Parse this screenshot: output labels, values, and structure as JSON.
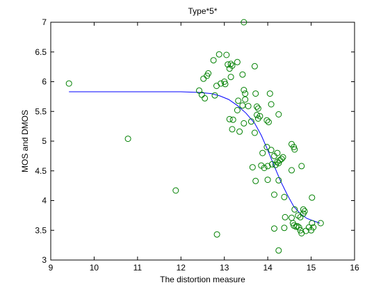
{
  "chart_data": {
    "type": "scatter",
    "title": "Type*5*",
    "xlabel": "The distortion measure",
    "ylabel": "MOS and DMOS",
    "xlim": [
      9,
      16
    ],
    "ylim": [
      3,
      7
    ],
    "xticks": [
      "9",
      "10",
      "11",
      "12",
      "13",
      "14",
      "15",
      "16"
    ],
    "yticks": [
      "3",
      "3.5",
      "4",
      "4.5",
      "5",
      "5.5",
      "6",
      "6.5",
      "7"
    ],
    "grid": false,
    "legend": "none",
    "series": [
      {
        "kind": "scatter",
        "marker": "open-circle",
        "color": "#008000",
        "points": [
          [
            9.42,
            5.97
          ],
          [
            10.78,
            5.04
          ],
          [
            11.88,
            4.17
          ],
          [
            12.83,
            3.43
          ],
          [
            12.42,
            5.85
          ],
          [
            12.48,
            5.78
          ],
          [
            12.55,
            5.72
          ],
          [
            12.52,
            6.05
          ],
          [
            12.6,
            6.1
          ],
          [
            12.63,
            6.14
          ],
          [
            12.75,
            6.36
          ],
          [
            12.88,
            6.46
          ],
          [
            12.78,
            5.77
          ],
          [
            12.82,
            5.93
          ],
          [
            12.92,
            5.97
          ],
          [
            13.0,
            6.0
          ],
          [
            13.02,
            5.96
          ],
          [
            13.05,
            6.45
          ],
          [
            13.08,
            6.29
          ],
          [
            13.12,
            6.22
          ],
          [
            13.15,
            6.3
          ],
          [
            13.18,
            6.27
          ],
          [
            13.15,
            6.08
          ],
          [
            13.3,
            6.33
          ],
          [
            13.42,
            6.12
          ],
          [
            13.45,
            7.0
          ],
          [
            13.45,
            5.86
          ],
          [
            13.48,
            5.8
          ],
          [
            13.48,
            5.7
          ],
          [
            13.32,
            5.68
          ],
          [
            13.12,
            5.37
          ],
          [
            13.2,
            5.36
          ],
          [
            13.3,
            5.52
          ],
          [
            13.18,
            5.2
          ],
          [
            13.35,
            5.16
          ],
          [
            13.42,
            5.6
          ],
          [
            13.45,
            5.3
          ],
          [
            13.55,
            5.59
          ],
          [
            13.62,
            5.33
          ],
          [
            13.7,
            6.26
          ],
          [
            13.72,
            5.8
          ],
          [
            13.75,
            5.58
          ],
          [
            13.78,
            5.55
          ],
          [
            13.82,
            5.42
          ],
          [
            13.78,
            5.38
          ],
          [
            13.75,
            5.44
          ],
          [
            13.7,
            5.14
          ],
          [
            13.98,
            5.35
          ],
          [
            14.02,
            5.32
          ],
          [
            14.05,
            5.8
          ],
          [
            14.08,
            5.62
          ],
          [
            14.25,
            5.45
          ],
          [
            13.88,
            4.8
          ],
          [
            13.98,
            4.9
          ],
          [
            14.08,
            4.85
          ],
          [
            14.15,
            4.75
          ],
          [
            14.22,
            4.8
          ],
          [
            14.25,
            4.63
          ],
          [
            14.28,
            4.68
          ],
          [
            14.32,
            4.7
          ],
          [
            14.35,
            4.73
          ],
          [
            14.22,
            4.65
          ],
          [
            14.18,
            4.6
          ],
          [
            14.1,
            4.61
          ],
          [
            14.0,
            4.58
          ],
          [
            13.85,
            4.59
          ],
          [
            13.92,
            4.55
          ],
          [
            13.65,
            4.56
          ],
          [
            13.72,
            4.33
          ],
          [
            14.0,
            4.35
          ],
          [
            14.25,
            4.34
          ],
          [
            14.15,
            4.1
          ],
          [
            14.38,
            4.06
          ],
          [
            14.55,
            4.95
          ],
          [
            14.6,
            4.9
          ],
          [
            14.62,
            4.86
          ],
          [
            14.55,
            4.51
          ],
          [
            14.78,
            4.58
          ],
          [
            15.02,
            4.05
          ],
          [
            14.82,
            3.85
          ],
          [
            14.85,
            3.82
          ],
          [
            14.82,
            3.78
          ],
          [
            14.62,
            3.85
          ],
          [
            14.4,
            3.72
          ],
          [
            14.55,
            3.71
          ],
          [
            14.58,
            3.62
          ],
          [
            14.6,
            3.58
          ],
          [
            14.65,
            3.56
          ],
          [
            14.7,
            3.75
          ],
          [
            14.75,
            3.72
          ],
          [
            14.72,
            3.55
          ],
          [
            14.75,
            3.5
          ],
          [
            14.78,
            3.45
          ],
          [
            14.88,
            3.49
          ],
          [
            14.95,
            3.55
          ],
          [
            15.02,
            3.62
          ],
          [
            15.05,
            3.55
          ],
          [
            14.15,
            3.53
          ],
          [
            14.38,
            3.54
          ],
          [
            15.0,
            3.5
          ],
          [
            14.68,
            3.57
          ],
          [
            15.22,
            3.62
          ],
          [
            14.25,
            3.16
          ]
        ]
      },
      {
        "kind": "line",
        "color": "#0000ff",
        "points": [
          [
            9.42,
            5.83
          ],
          [
            12.0,
            5.83
          ],
          [
            12.4,
            5.82
          ],
          [
            12.7,
            5.8
          ],
          [
            12.9,
            5.76
          ],
          [
            13.1,
            5.7
          ],
          [
            13.3,
            5.6
          ],
          [
            13.5,
            5.47
          ],
          [
            13.7,
            5.3
          ],
          [
            13.85,
            5.1
          ],
          [
            14.0,
            4.85
          ],
          [
            14.15,
            4.58
          ],
          [
            14.3,
            4.32
          ],
          [
            14.45,
            4.1
          ],
          [
            14.6,
            3.9
          ],
          [
            14.75,
            3.78
          ],
          [
            14.9,
            3.7
          ],
          [
            15.05,
            3.66
          ],
          [
            15.2,
            3.62
          ]
        ]
      }
    ]
  }
}
